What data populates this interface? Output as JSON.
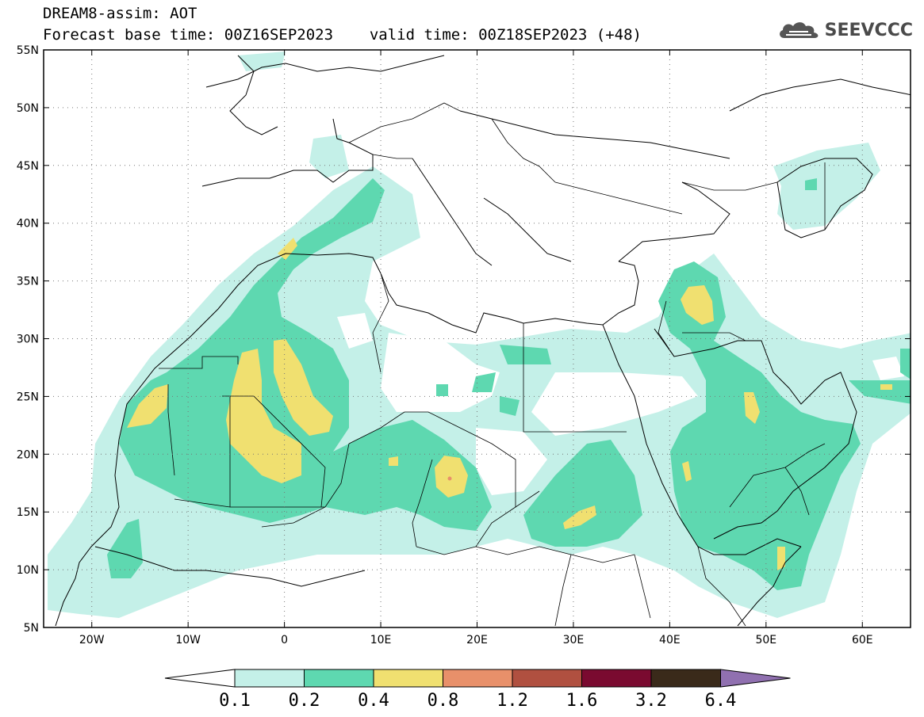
{
  "header": {
    "title": "DREAM8-assim: AOT",
    "base_time_label": "Forecast base time: 00Z16SEP2023",
    "valid_time_label": "valid time: 00Z18SEP2023 (+48)"
  },
  "logo": {
    "text": "SEEVCCC",
    "icon": "cloud-icon"
  },
  "map": {
    "projection": "lat-lon",
    "lon_range": [
      -25,
      65
    ],
    "lat_range": [
      5,
      55
    ],
    "lat_ticks": [
      "55N",
      "50N",
      "45N",
      "40N",
      "35N",
      "30N",
      "25N",
      "20N",
      "15N",
      "10N",
      "5N"
    ],
    "lon_ticks": [
      "20W",
      "10W",
      "0",
      "10E",
      "20E",
      "30E",
      "40E",
      "50E",
      "60E"
    ],
    "gridlines": "dotted",
    "field": "AOT"
  },
  "colorbar": {
    "levels": [
      "0.1",
      "0.2",
      "0.4",
      "0.8",
      "1.2",
      "1.6",
      "3.2",
      "6.4"
    ],
    "colors": [
      "#ffffff",
      "#c4f0e8",
      "#5ed8b0",
      "#f0e070",
      "#e8906a",
      "#b05040",
      "#7a0a30",
      "#3a2a1a",
      "#9070b0"
    ]
  }
}
